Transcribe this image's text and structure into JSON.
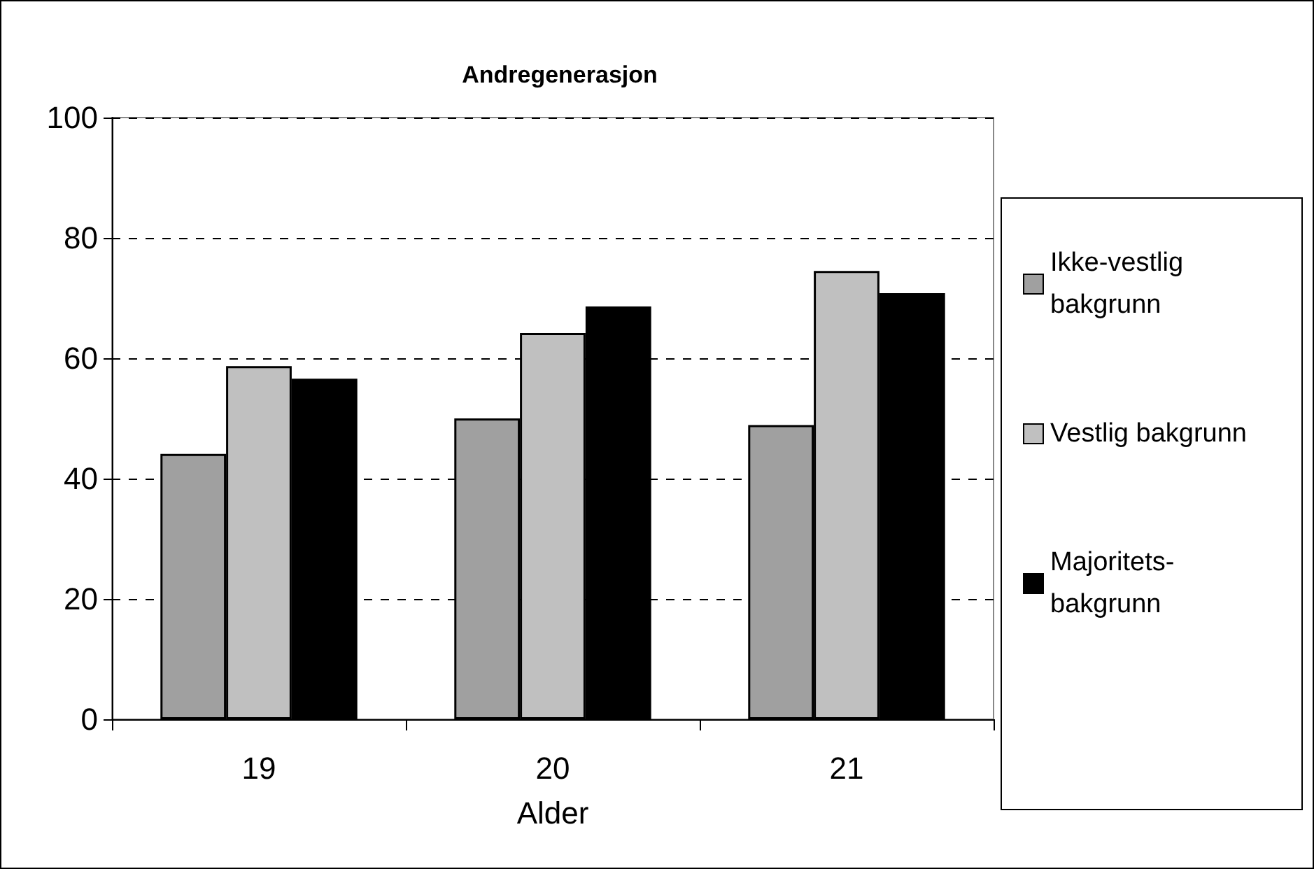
{
  "chart_data": {
    "type": "bar",
    "title": "Andregenerasjon",
    "xlabel": "Alder",
    "categories": [
      "19",
      "20",
      "21"
    ],
    "series": [
      {
        "name": "Ikke-vestlig bakgrunn",
        "color": "#a0a0a0",
        "values": [
          44.1,
          50.0,
          48.9
        ]
      },
      {
        "name": "Vestlig bakgrunn",
        "color": "#c0c0c0",
        "values": [
          58.7,
          64.2,
          74.5
        ]
      },
      {
        "name": "Majoritets-bakgrunn",
        "color": "#000000",
        "values": [
          56.6,
          68.6,
          70.8
        ]
      }
    ],
    "ylim": [
      0,
      100
    ],
    "yticks": [
      0,
      20,
      40,
      60,
      80,
      100
    ],
    "grid": "y",
    "legend": "right"
  }
}
